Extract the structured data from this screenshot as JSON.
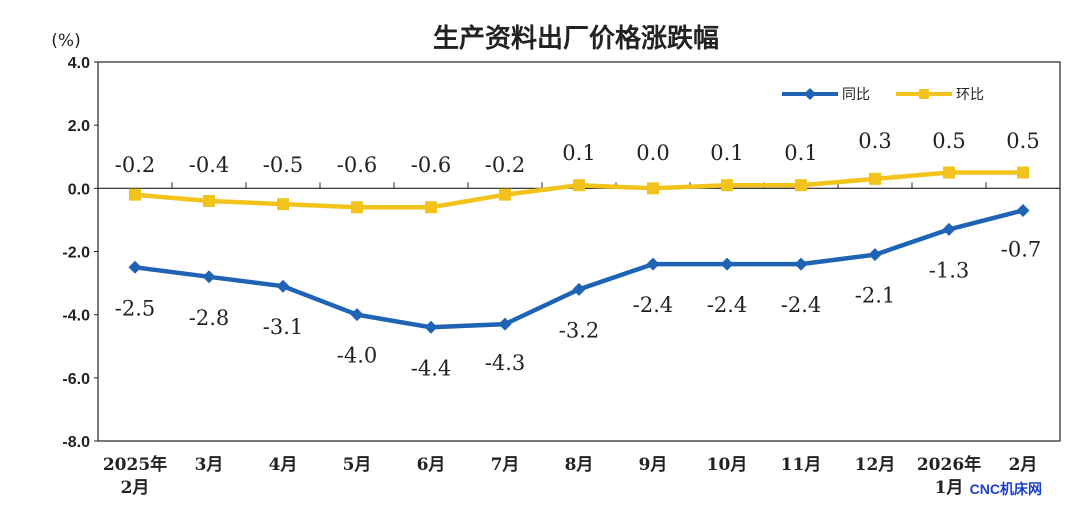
{
  "chart_data": {
    "type": "line",
    "title": "生产资料出厂价格涨跌幅",
    "unit_label": "(%)",
    "ylim": [
      -8.0,
      4.0
    ],
    "yticks": [
      "4.0",
      "2.0",
      "0.0",
      "-2.0",
      "-4.0",
      "-6.0",
      "-8.0"
    ],
    "ytick_values": [
      4,
      2,
      0,
      -2,
      -4,
      -6,
      -8
    ],
    "grid": false,
    "legend_position": "top-right",
    "categories": [
      [
        "2025年",
        "2月"
      ],
      [
        "3月"
      ],
      [
        "4月"
      ],
      [
        "5月"
      ],
      [
        "6月"
      ],
      [
        "7月"
      ],
      [
        "8月"
      ],
      [
        "9月"
      ],
      [
        "10月"
      ],
      [
        "11月"
      ],
      [
        "12月"
      ],
      [
        "2026年",
        "1月"
      ],
      [
        "2月"
      ]
    ],
    "series": [
      {
        "name": "同比",
        "color": "#1f63b5",
        "marker": "diamond",
        "values": [
          -2.5,
          -2.8,
          -3.1,
          -4.0,
          -4.4,
          -4.3,
          -3.2,
          -2.4,
          -2.4,
          -2.4,
          -2.1,
          -1.3,
          -0.7
        ],
        "labels": [
          "-2.5",
          "-2.8",
          "-3.1",
          "-4.0",
          "-4.4",
          "-4.3",
          "-3.2",
          "-2.4",
          "-2.4",
          "-2.4",
          "-2.1",
          "-1.3",
          "-0.7"
        ]
      },
      {
        "name": "环比",
        "color": "#f2c31a",
        "marker": "square",
        "values": [
          -0.2,
          -0.4,
          -0.5,
          -0.6,
          -0.6,
          -0.2,
          0.1,
          0.0,
          0.1,
          0.1,
          0.3,
          0.5,
          0.5
        ],
        "labels": [
          "-0.2",
          "-0.4",
          "-0.5",
          "-0.6",
          "-0.6",
          "-0.2",
          "0.1",
          "0.0",
          "0.1",
          "0.1",
          "0.3",
          "0.5",
          "0.5"
        ]
      }
    ]
  },
  "watermark": "CNC机床网"
}
